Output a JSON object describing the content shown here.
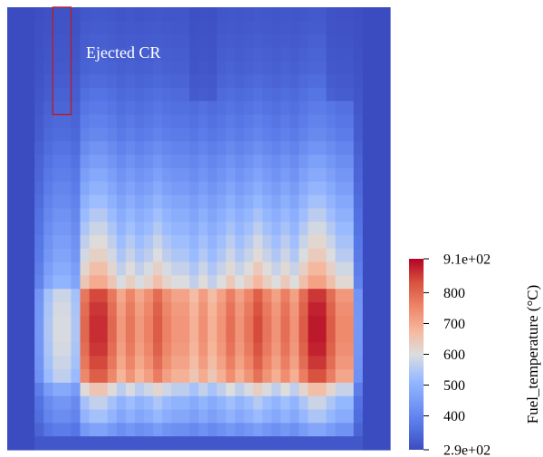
{
  "chart_data": {
    "type": "heatmap",
    "field_label": "Fuel_temperature (°C)",
    "colormap": "cool-to-warm",
    "color_range": [
      290,
      910
    ],
    "colorbar_ticks": [
      {
        "value": 910,
        "label": "9.1e+02"
      },
      {
        "value": 800,
        "label": "800"
      },
      {
        "value": 700,
        "label": "700"
      },
      {
        "value": 600,
        "label": "600"
      },
      {
        "value": 500,
        "label": "500"
      },
      {
        "value": 400,
        "label": "400"
      },
      {
        "value": 290,
        "label": "2.9e+02"
      }
    ],
    "annotation": "Ejected CR",
    "coolant_temperature": 290,
    "grid": {
      "columns": 42,
      "rows": 33
    },
    "column_groups": [
      {
        "from": 0,
        "to": 2,
        "region": "reflector"
      },
      {
        "from": 3,
        "to": 3,
        "region": "edge"
      },
      {
        "from": 4,
        "to": 7,
        "region": "assembly",
        "peak": 600
      },
      {
        "from": 8,
        "to": 11,
        "region": "assembly",
        "peak": 880
      },
      {
        "from": 12,
        "to": 14,
        "region": "assembly",
        "peak": 780
      },
      {
        "from": 15,
        "to": 17,
        "region": "assembly",
        "peak": 820
      },
      {
        "from": 18,
        "to": 19,
        "region": "assembly",
        "peak": 760
      },
      {
        "from": 20,
        "to": 22,
        "region": "assembly",
        "peak": 740
      },
      {
        "from": 23,
        "to": 25,
        "region": "assembly",
        "peak": 790
      },
      {
        "from": 26,
        "to": 28,
        "region": "assembly",
        "peak": 840
      },
      {
        "from": 29,
        "to": 31,
        "region": "assembly",
        "peak": 790
      },
      {
        "from": 32,
        "to": 35,
        "region": "assembly",
        "peak": 900
      },
      {
        "from": 36,
        "to": 37,
        "region": "assembly",
        "peak": 780
      },
      {
        "from": 38,
        "to": 38,
        "region": "edge"
      },
      {
        "from": 39,
        "to": 41,
        "region": "reflector"
      }
    ],
    "inserted_rods": [
      {
        "columns": [
          20,
          22
        ],
        "tip_row": 26
      },
      {
        "columns": [
          35,
          37
        ],
        "tip_row": 26
      }
    ],
    "ejected_rod": {
      "columns": [
        5,
        6
      ],
      "from_row": 33,
      "to_row": 25
    }
  }
}
